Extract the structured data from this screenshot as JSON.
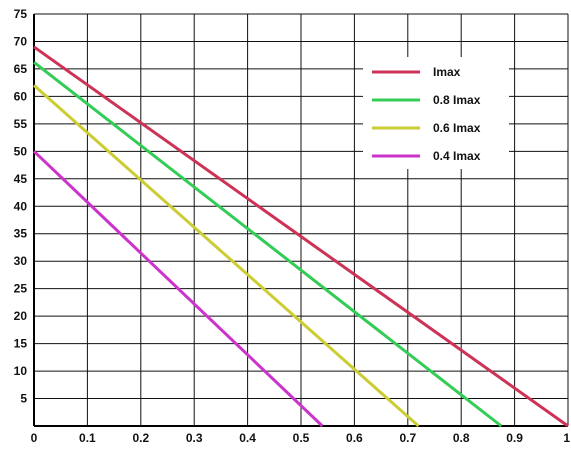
{
  "chart_data": {
    "type": "line",
    "title": "",
    "xlabel": "",
    "ylabel": "",
    "xlim": [
      0,
      1
    ],
    "ylim": [
      0,
      75
    ],
    "x_ticks": [
      0,
      0.1,
      0.2,
      0.3,
      0.4,
      0.5,
      0.6,
      0.7,
      0.8,
      0.9,
      1
    ],
    "x_tick_labels": [
      "0",
      "0.1",
      "0.2",
      "0.3",
      "0.4",
      "0.5",
      "0.6",
      "0.7",
      "0.8",
      "0.9",
      "1"
    ],
    "y_ticks": [
      5,
      10,
      15,
      20,
      25,
      30,
      35,
      40,
      45,
      50,
      55,
      60,
      65,
      70,
      75
    ],
    "y_tick_labels": [
      "5",
      "10",
      "15",
      "20",
      "25",
      "30",
      "35",
      "40",
      "45",
      "50",
      "55",
      "60",
      "65",
      "70",
      "75"
    ],
    "grid": true,
    "legend_position": "top-right",
    "series": [
      {
        "name": "Imax",
        "color": "#cc3355",
        "x": [
          0,
          1
        ],
        "y": [
          69,
          0
        ]
      },
      {
        "name": "0.8 Imax",
        "color": "#33cc55",
        "x": [
          0,
          0.875
        ],
        "y": [
          66.2,
          0
        ]
      },
      {
        "name": "0.6 Imax",
        "color": "#cccc33",
        "x": [
          0,
          0.72
        ],
        "y": [
          62,
          0
        ]
      },
      {
        "name": "0.4 Imax",
        "color": "#cc33cc",
        "x": [
          0,
          0.54
        ],
        "y": [
          50,
          0
        ]
      }
    ]
  }
}
